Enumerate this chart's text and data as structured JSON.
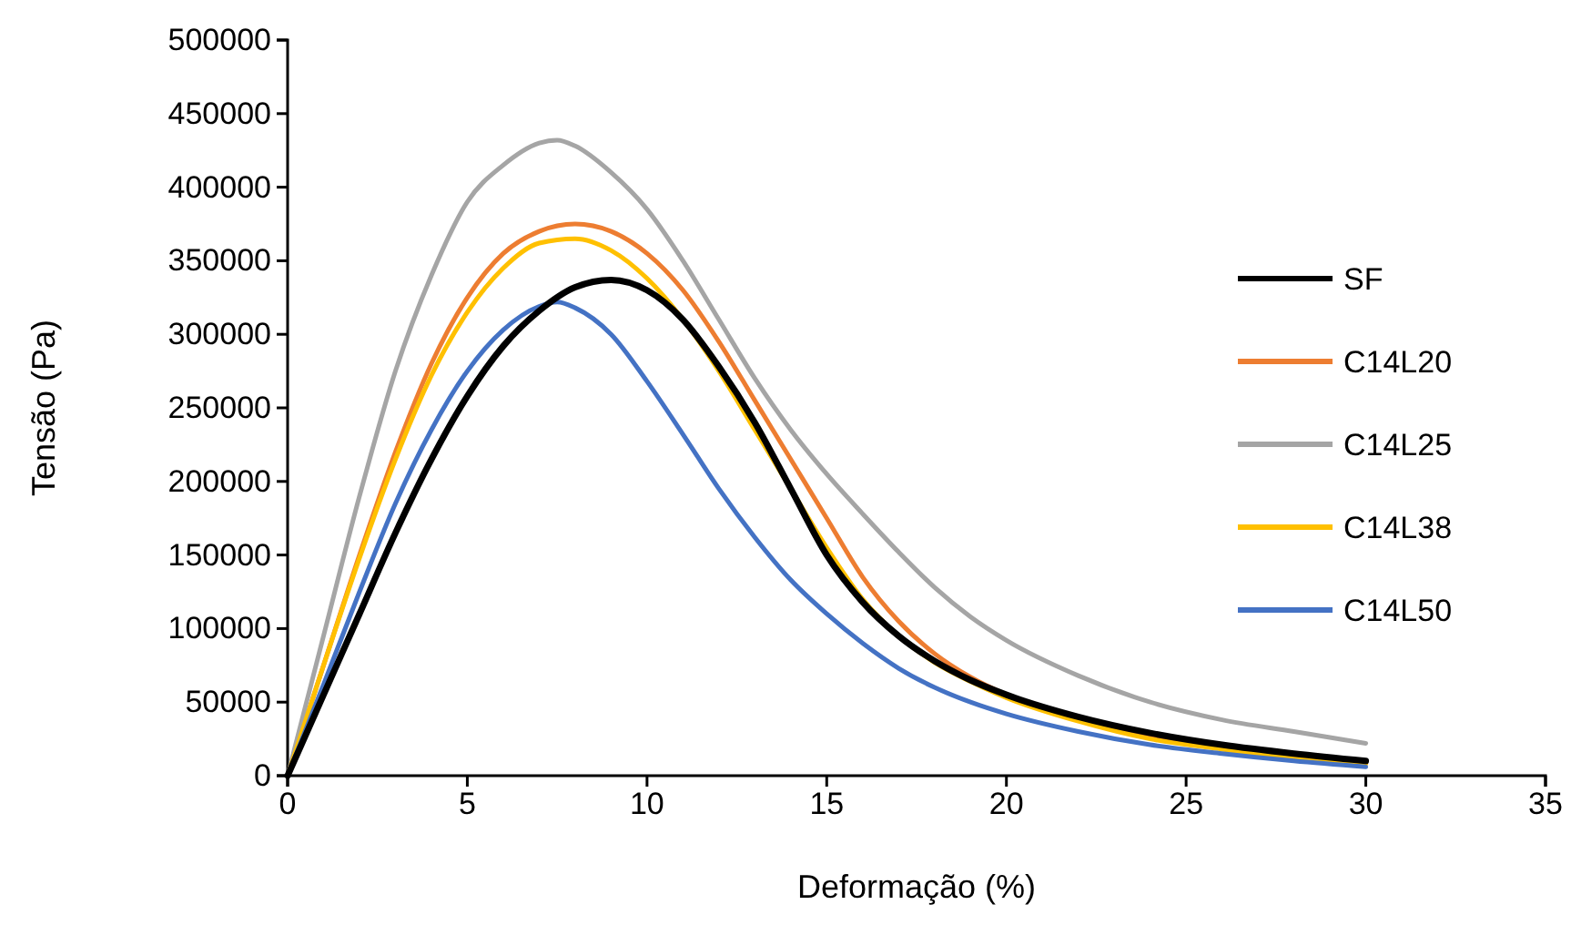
{
  "chart_data": {
    "type": "line",
    "xlabel": "Deformação (%)",
    "ylabel": "Tensão (Pa)",
    "xlim": [
      0,
      35
    ],
    "xticks": [
      0,
      5,
      10,
      15,
      20,
      25,
      30,
      35
    ],
    "ylim": [
      0,
      500000
    ],
    "yticks": [
      0,
      50000,
      100000,
      150000,
      200000,
      250000,
      300000,
      350000,
      400000,
      450000,
      500000
    ],
    "grid": false,
    "legend": "right",
    "series": [
      {
        "name": "SF",
        "color": "#000000",
        "x": [
          0,
          1,
          2,
          3,
          4,
          5,
          6,
          7,
          8,
          9,
          10,
          11,
          12,
          13,
          14,
          15,
          16,
          17,
          18,
          19,
          20,
          22,
          24,
          26,
          28,
          30
        ],
        "values": [
          0,
          55000,
          110000,
          165000,
          215000,
          258000,
          292000,
          316000,
          332000,
          337000,
          330000,
          310000,
          278000,
          240000,
          195000,
          150000,
          118000,
          95000,
          78000,
          65000,
          55000,
          40000,
          29000,
          21000,
          15000,
          10000
        ]
      },
      {
        "name": "C14L20",
        "color": "#ed7d31",
        "x": [
          0,
          1,
          2,
          3,
          4,
          5,
          6,
          7,
          8,
          9,
          10,
          11,
          12,
          13,
          14,
          15,
          16,
          17,
          18,
          19,
          20,
          22,
          24,
          26,
          28,
          30
        ],
        "values": [
          0,
          75000,
          150000,
          220000,
          280000,
          325000,
          355000,
          370000,
          375000,
          370000,
          355000,
          330000,
          295000,
          255000,
          215000,
          175000,
          135000,
          105000,
          83000,
          67000,
          55000,
          38000,
          26000,
          19000,
          13000,
          9000
        ]
      },
      {
        "name": "C14L25",
        "color": "#a5a5a5",
        "x": [
          0,
          1,
          2,
          3,
          4,
          5,
          6,
          7,
          7.5,
          8,
          9,
          10,
          11,
          12,
          13,
          14,
          15,
          16,
          17,
          18,
          19,
          20,
          22,
          24,
          26,
          28,
          30
        ],
        "values": [
          0,
          95000,
          190000,
          275000,
          340000,
          390000,
          415000,
          430000,
          432000,
          428000,
          410000,
          385000,
          350000,
          310000,
          270000,
          235000,
          205000,
          178000,
          152000,
          128000,
          108000,
          92000,
          68000,
          50000,
          38000,
          30000,
          22000
        ]
      },
      {
        "name": "C14L38",
        "color": "#ffc000",
        "x": [
          0,
          1,
          2,
          3,
          4,
          5,
          6,
          7,
          8,
          9,
          10,
          11,
          12,
          13,
          14,
          15,
          16,
          17,
          18,
          19,
          20,
          22,
          24,
          26,
          28,
          30
        ],
        "values": [
          0,
          75000,
          148000,
          215000,
          272000,
          315000,
          345000,
          362000,
          365000,
          357000,
          338000,
          310000,
          275000,
          235000,
          195000,
          155000,
          120000,
          95000,
          77000,
          64000,
          53000,
          37000,
          25000,
          18000,
          12000,
          8000
        ]
      },
      {
        "name": "C14L50",
        "color": "#4472c4",
        "x": [
          0,
          1,
          2,
          3,
          4,
          5,
          6,
          7,
          7.5,
          8,
          9,
          10,
          11,
          12,
          13,
          14,
          15,
          16,
          17,
          18,
          19,
          20,
          22,
          24,
          26,
          28,
          30
        ],
        "values": [
          0,
          62000,
          125000,
          185000,
          235000,
          275000,
          303000,
          319000,
          322000,
          318000,
          300000,
          268000,
          232000,
          195000,
          162000,
          133000,
          110000,
          90000,
          73000,
          60000,
          50000,
          42000,
          30000,
          21000,
          15000,
          10000,
          6000
        ]
      }
    ]
  }
}
